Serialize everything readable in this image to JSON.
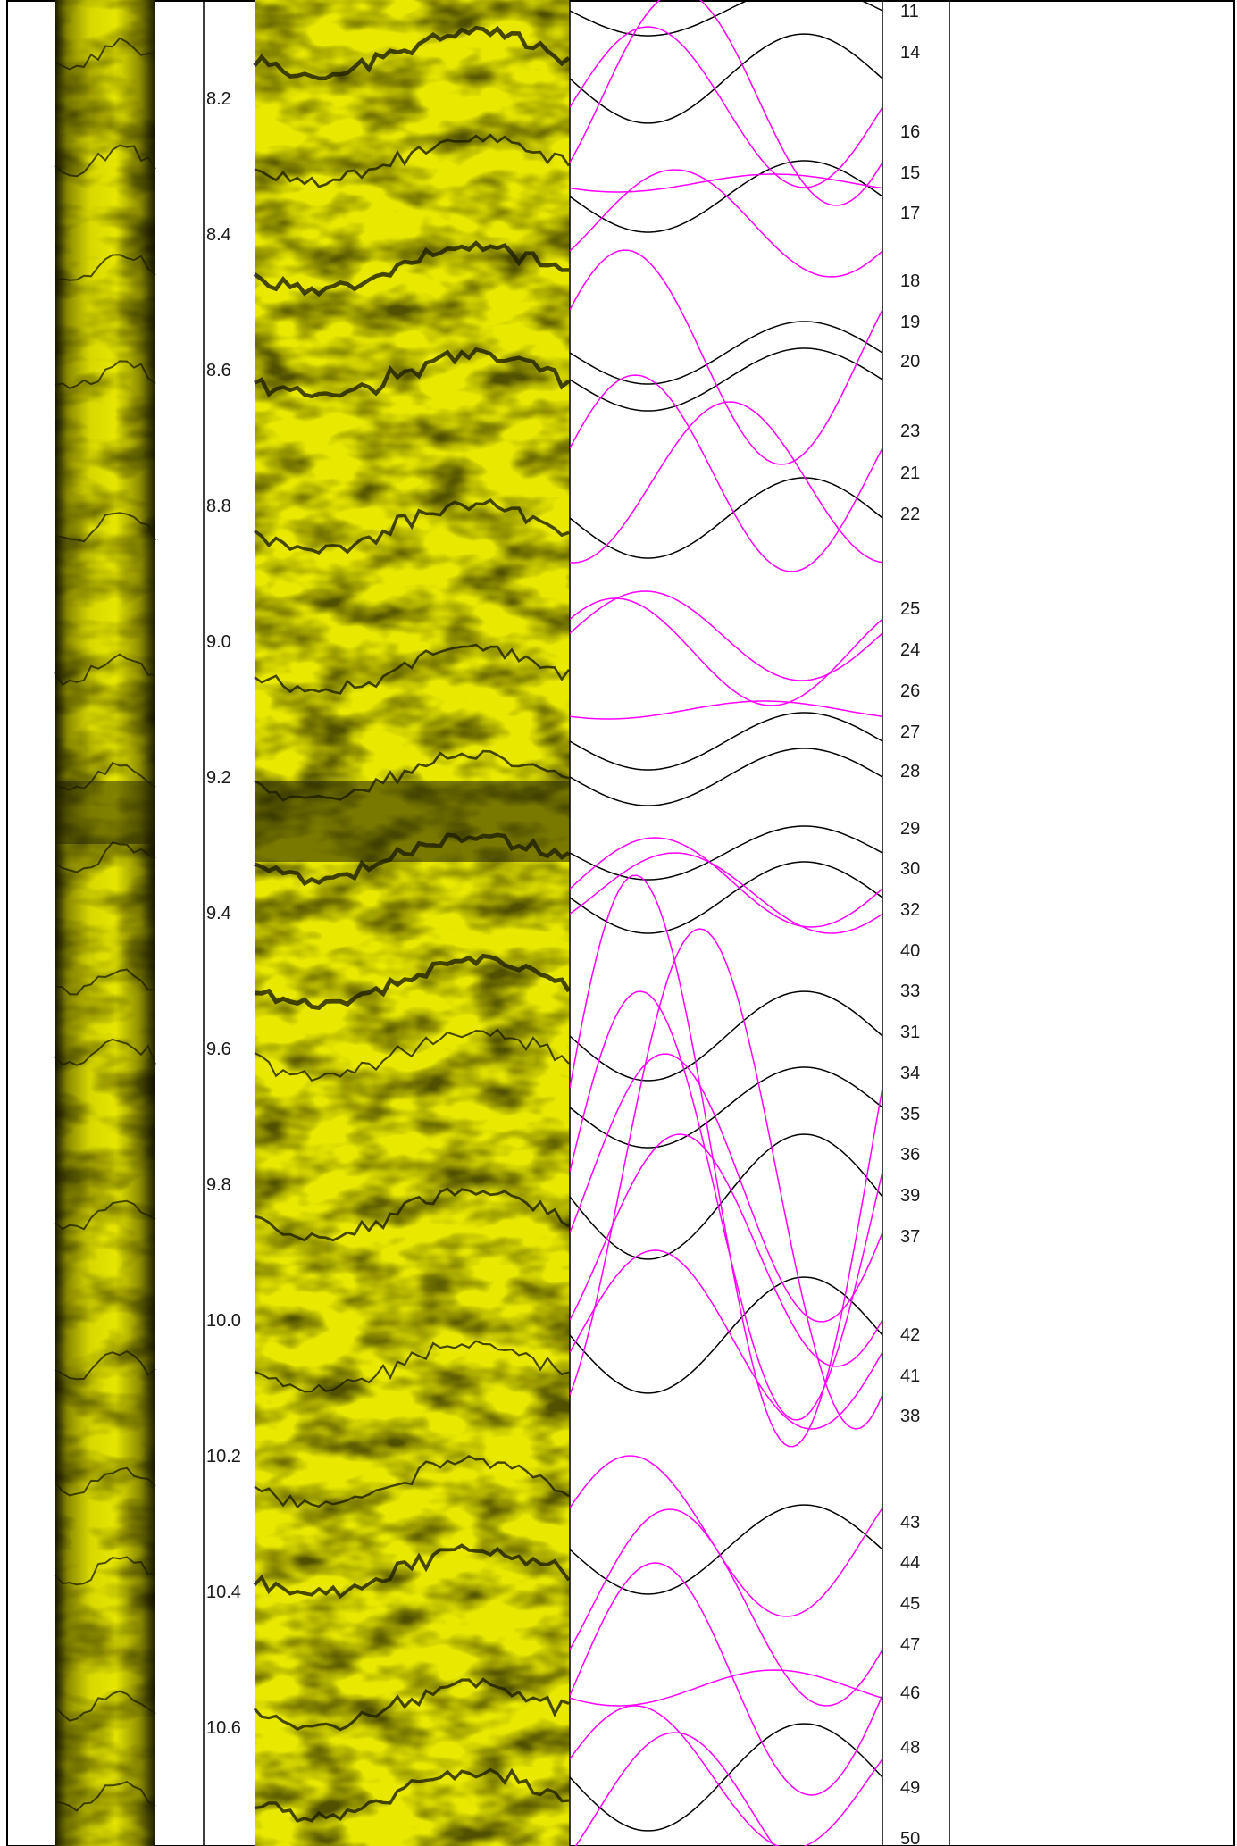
{
  "depth_scale": {
    "labels": [
      "8.2",
      "8.4",
      "8.6",
      "8.8",
      "9.0",
      "9.2",
      "9.4",
      "9.6",
      "9.8",
      "10.0",
      "10.2",
      "10.4",
      "10.6"
    ]
  },
  "fracture_track": {
    "colors": {
      "black_set": "#000000",
      "magenta_set": "#ff00ff"
    },
    "ids": [
      "11",
      "14",
      "16",
      "15",
      "17",
      "18",
      "19",
      "20",
      "23",
      "21",
      "22",
      "25",
      "24",
      "26",
      "27",
      "28",
      "29",
      "30",
      "32",
      "40",
      "33",
      "31",
      "34",
      "35",
      "36",
      "39",
      "37",
      "42",
      "41",
      "38",
      "43",
      "44",
      "45",
      "47",
      "46",
      "48",
      "49",
      "50"
    ]
  },
  "colors": {
    "image_yellow": "#e8e800",
    "image_dark_edge": "#1e1e00",
    "frame": "#000000",
    "background": "#ffffff"
  }
}
